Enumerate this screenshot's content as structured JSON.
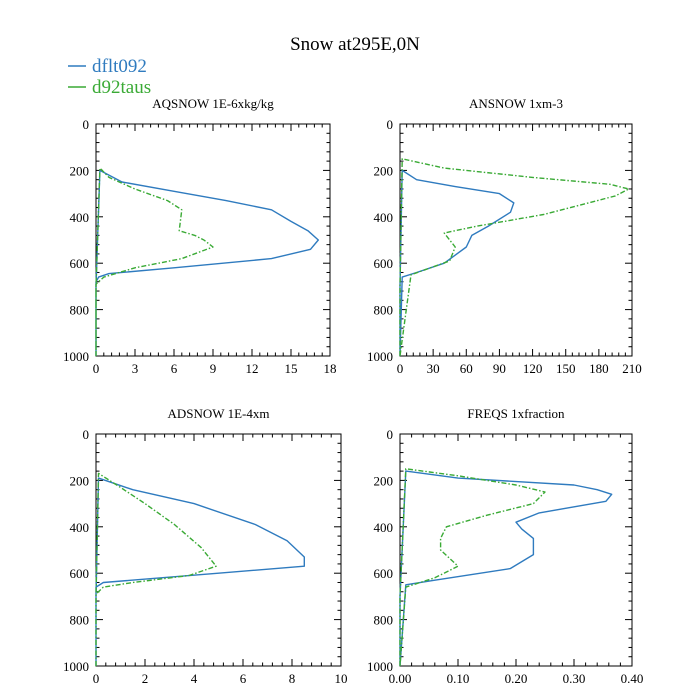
{
  "title": "Snow at295E,0N",
  "legend": [
    {
      "name": "dflt092",
      "color": "#2f7bbf",
      "dash": "solid"
    },
    {
      "name": "d92taus",
      "color": "#3aaa35",
      "dash": "dashed"
    }
  ],
  "chart_data": [
    {
      "type": "line",
      "title": "AQSNOW  1E-6xkg/kg",
      "xlim": [
        0,
        18
      ],
      "ylim": [
        1000,
        0
      ],
      "xticks": [
        0,
        3,
        6,
        9,
        12,
        15,
        18
      ],
      "xtick_labels": [
        "0",
        "3",
        "6",
        "9",
        "12",
        "15",
        "18"
      ],
      "yticks": [
        0,
        200,
        400,
        600,
        800,
        1000
      ],
      "ytick_labels": [
        "0",
        "200",
        "400",
        "600",
        "800",
        "1000"
      ],
      "series": [
        {
          "name": "dflt092",
          "x": [
            0,
            0,
            0.3,
            2,
            6,
            10,
            13.5,
            15,
            16.3,
            17.1,
            16.5,
            13.5,
            6,
            1,
            0.2,
            0,
            0
          ],
          "y": [
            1000,
            700,
            200,
            250,
            290,
            330,
            370,
            420,
            460,
            500,
            540,
            580,
            620,
            645,
            660,
            680,
            1000
          ]
        },
        {
          "name": "d92taus",
          "x": [
            0,
            0,
            0.3,
            1,
            3,
            5.5,
            6.6,
            6.4,
            7.6,
            8.3,
            9,
            6.6,
            3,
            0.6,
            0,
            0
          ],
          "y": [
            1000,
            700,
            190,
            230,
            280,
            330,
            370,
            460,
            480,
            500,
            530,
            580,
            620,
            660,
            690,
            1000
          ]
        }
      ]
    },
    {
      "type": "line",
      "title": "ANSNOW  1xm-3",
      "xlim": [
        0,
        210
      ],
      "ylim": [
        1000,
        0
      ],
      "xticks": [
        0,
        30,
        60,
        90,
        120,
        150,
        180,
        210
      ],
      "xtick_labels": [
        "0",
        "30",
        "60",
        "90",
        "120",
        "150",
        "180",
        "210"
      ],
      "yticks": [
        0,
        200,
        400,
        600,
        800,
        1000
      ],
      "ytick_labels": [
        "0",
        "200",
        "400",
        "600",
        "800",
        "1000"
      ],
      "series": [
        {
          "name": "dflt092",
          "x": [
            0,
            0,
            2,
            15,
            50,
            90,
            103,
            100,
            80,
            65,
            60,
            40,
            15,
            2,
            0
          ],
          "y": [
            1000,
            700,
            200,
            240,
            270,
            300,
            340,
            380,
            440,
            480,
            530,
            600,
            640,
            660,
            1000
          ]
        },
        {
          "name": "d92taus",
          "x": [
            0,
            0,
            2,
            40,
            120,
            190,
            207,
            195,
            130,
            70,
            40,
            50,
            45,
            10,
            0
          ],
          "y": [
            1000,
            700,
            150,
            190,
            230,
            260,
            280,
            310,
            390,
            440,
            470,
            530,
            590,
            650,
            1000
          ]
        }
      ]
    },
    {
      "type": "line",
      "title": "ADSNOW  1E-4xm",
      "xlim": [
        0,
        10
      ],
      "ylim": [
        1000,
        0
      ],
      "xticks": [
        0,
        2,
        4,
        6,
        8,
        10
      ],
      "xtick_labels": [
        "0",
        "2",
        "4",
        "6",
        "8",
        "10"
      ],
      "yticks": [
        0,
        200,
        400,
        600,
        800,
        1000
      ],
      "ytick_labels": [
        "0",
        "200",
        "400",
        "600",
        "800",
        "1000"
      ],
      "series": [
        {
          "name": "dflt092",
          "x": [
            0,
            0,
            0.1,
            1.5,
            4,
            6.5,
            7.8,
            8.5,
            8.5,
            5,
            0.3,
            0,
            0
          ],
          "y": [
            1000,
            700,
            190,
            240,
            300,
            390,
            460,
            530,
            570,
            600,
            640,
            660,
            1000
          ]
        },
        {
          "name": "d92taus",
          "x": [
            0,
            0,
            0.1,
            1,
            2,
            3.2,
            4.3,
            4.9,
            3.8,
            1.5,
            0.3,
            0,
            0
          ],
          "y": [
            1000,
            700,
            170,
            230,
            300,
            390,
            490,
            570,
            610,
            640,
            660,
            690,
            1000
          ]
        }
      ]
    },
    {
      "type": "line",
      "title": "FREQS  1xfraction",
      "xlim": [
        0,
        0.4
      ],
      "ylim": [
        1000,
        0
      ],
      "xticks": [
        0,
        0.1,
        0.2,
        0.3,
        0.4
      ],
      "xtick_labels": [
        "0.00",
        "0.10",
        "0.20",
        "0.30",
        "0.40"
      ],
      "yticks": [
        0,
        200,
        400,
        600,
        800,
        1000
      ],
      "ytick_labels": [
        "0",
        "200",
        "400",
        "600",
        "800",
        "1000"
      ],
      "series": [
        {
          "name": "dflt092",
          "x": [
            0,
            0,
            0.01,
            0.1,
            0.3,
            0.34,
            0.365,
            0.355,
            0.24,
            0.2,
            0.21,
            0.23,
            0.23,
            0.19,
            0.06,
            0.01,
            0
          ],
          "y": [
            1000,
            700,
            160,
            190,
            220,
            240,
            260,
            290,
            340,
            380,
            410,
            450,
            520,
            580,
            630,
            650,
            1000
          ]
        },
        {
          "name": "d92taus",
          "x": [
            0,
            0,
            0.01,
            0.1,
            0.2,
            0.25,
            0.23,
            0.15,
            0.08,
            0.07,
            0.07,
            0.1,
            0.06,
            0.01,
            0
          ],
          "y": [
            1000,
            700,
            150,
            180,
            220,
            250,
            300,
            350,
            400,
            450,
            500,
            570,
            620,
            660,
            1000
          ]
        }
      ]
    }
  ]
}
